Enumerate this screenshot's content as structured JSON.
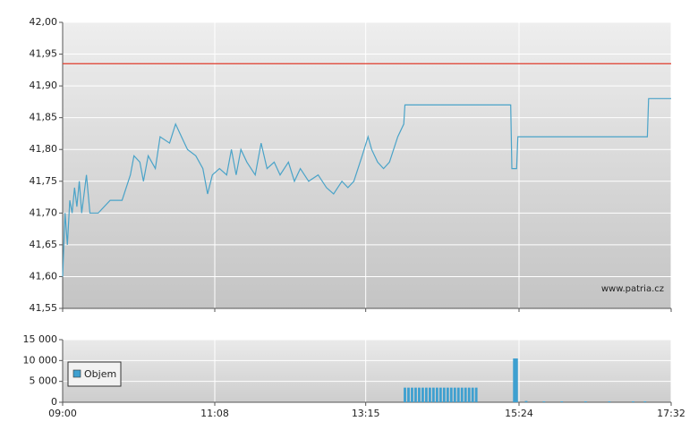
{
  "chart_data": [
    {
      "type": "line",
      "annotation": "www.patria.cz",
      "reference_line": {
        "value": 41.935,
        "color": "#e03a2a"
      },
      "series": [
        {
          "color": "#4aa3c8",
          "x": [
            "09:00",
            "09:02",
            "09:04",
            "09:06",
            "09:08",
            "09:10",
            "09:12",
            "09:14",
            "09:16",
            "09:20",
            "09:23",
            "09:30",
            "09:40",
            "09:50",
            "09:57",
            "10:00",
            "10:05",
            "10:08",
            "10:12",
            "10:18",
            "10:22",
            "10:30",
            "10:35",
            "10:40",
            "10:45",
            "10:52",
            "10:58",
            "11:02",
            "11:06",
            "11:12",
            "11:18",
            "11:22",
            "11:26",
            "11:30",
            "11:35",
            "11:42",
            "11:47",
            "11:52",
            "11:58",
            "12:03",
            "12:10",
            "12:15",
            "12:20",
            "12:27",
            "12:35",
            "12:42",
            "12:48",
            "12:55",
            "13:00",
            "13:05",
            "13:12",
            "13:17",
            "13:20",
            "13:25",
            "13:30",
            "13:35",
            "13:42",
            "13:47",
            "13:48",
            "15:17",
            "15:18",
            "15:22",
            "15:23",
            "17:12",
            "17:13",
            "17:32"
          ],
          "values": [
            41.6,
            41.7,
            41.65,
            41.72,
            41.7,
            41.74,
            41.71,
            41.75,
            41.7,
            41.76,
            41.7,
            41.7,
            41.72,
            41.72,
            41.76,
            41.79,
            41.78,
            41.75,
            41.79,
            41.77,
            41.82,
            41.81,
            41.84,
            41.82,
            41.8,
            41.79,
            41.77,
            41.73,
            41.76,
            41.77,
            41.76,
            41.8,
            41.76,
            41.8,
            41.78,
            41.76,
            41.81,
            41.77,
            41.78,
            41.76,
            41.78,
            41.75,
            41.77,
            41.75,
            41.76,
            41.74,
            41.73,
            41.75,
            41.74,
            41.75,
            41.79,
            41.82,
            41.8,
            41.78,
            41.77,
            41.78,
            41.82,
            41.84,
            41.87,
            41.87,
            41.77,
            41.77,
            41.82,
            41.82,
            41.88,
            41.88
          ]
        }
      ],
      "ylim": [
        41.55,
        42.0
      ],
      "yticks": [
        {
          "value": 41.55,
          "label": "41,55"
        },
        {
          "value": 41.6,
          "label": "41,60"
        },
        {
          "value": 41.65,
          "label": "41,65"
        },
        {
          "value": 41.7,
          "label": "41,70"
        },
        {
          "value": 41.75,
          "label": "41,75"
        },
        {
          "value": 41.8,
          "label": "41,80"
        },
        {
          "value": 41.85,
          "label": "41,85"
        },
        {
          "value": 41.9,
          "label": "41,90"
        },
        {
          "value": 41.95,
          "label": "41,95"
        },
        {
          "value": 42.0,
          "label": "42,00"
        }
      ],
      "grid": true
    },
    {
      "type": "bar",
      "legend": "upper left",
      "series": [
        {
          "name": "Objem",
          "color": "#3ea0d0",
          "x": [
            "13:48",
            "13:51",
            "13:54",
            "13:57",
            "14:00",
            "14:03",
            "14:06",
            "14:09",
            "14:12",
            "14:15",
            "14:18",
            "14:21",
            "14:24",
            "14:27",
            "14:30",
            "14:33",
            "14:36",
            "14:39",
            "14:42",
            "14:45",
            "14:48",
            "15:20",
            "15:22",
            "15:30",
            "15:45",
            "16:00",
            "16:20",
            "16:40",
            "17:00",
            "17:10"
          ],
          "values": [
            3500,
            3500,
            3500,
            3500,
            3500,
            3500,
            3500,
            3500,
            3500,
            3500,
            3500,
            3500,
            3500,
            3500,
            3500,
            3500,
            3500,
            3500,
            3500,
            3500,
            3500,
            10500,
            10500,
            300,
            200,
            200,
            200,
            200,
            200,
            200
          ]
        }
      ],
      "xlim": [
        "09:00",
        "17:32"
      ],
      "xticks": [
        "09:00",
        "11:08",
        "13:15",
        "15:24",
        "17:32"
      ],
      "ylim": [
        0,
        15000
      ],
      "yticks": [
        0,
        {
          "value": 5000,
          "label": "5 000"
        },
        {
          "value": 10000,
          "label": "10 000"
        },
        {
          "value": 15000,
          "label": "15 000"
        }
      ],
      "grid": true
    }
  ]
}
